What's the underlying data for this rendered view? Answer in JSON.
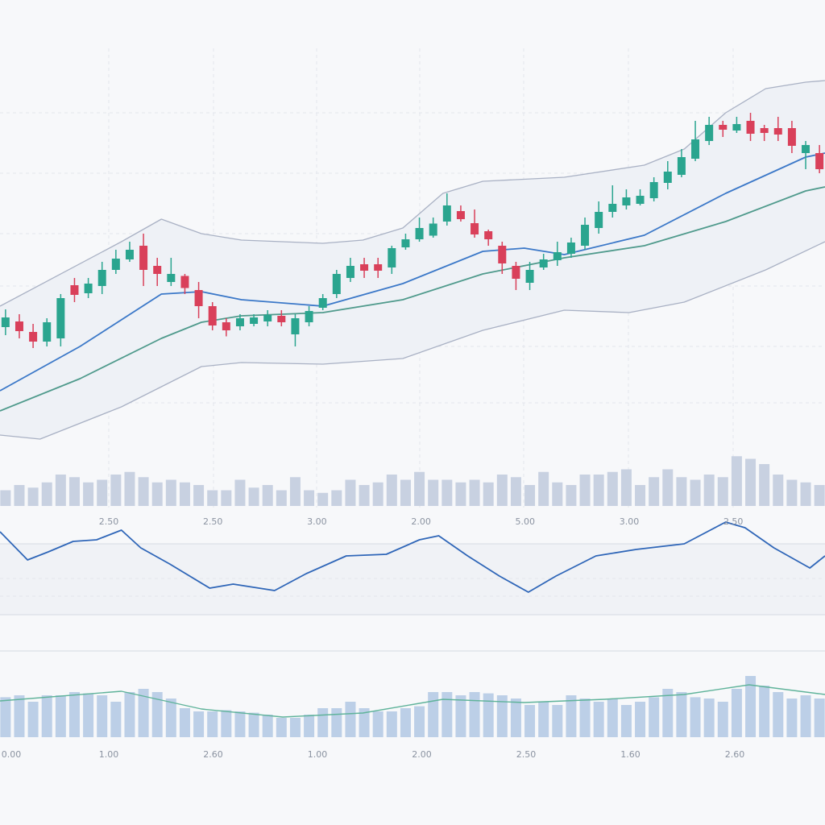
{
  "chart_data": [
    {
      "type": "candlestick",
      "categories": [
        null,
        null,
        null,
        null,
        null,
        null,
        null,
        null,
        null,
        null,
        null,
        null,
        null,
        null,
        null,
        null,
        null,
        null,
        null,
        null,
        null,
        null,
        null,
        null,
        null,
        null,
        null,
        null,
        null,
        null,
        null,
        null,
        null,
        null,
        null,
        null,
        null,
        null,
        null,
        null,
        null,
        null,
        null,
        null,
        null,
        null,
        null,
        null,
        null,
        null,
        null,
        null,
        null,
        null,
        null,
        null,
        null,
        null,
        null,
        null
      ],
      "open": [
        30.8,
        32.2,
        29.6,
        27.2,
        28,
        41.2,
        39.2,
        41,
        45,
        47.6,
        51,
        46,
        42,
        43.5,
        40,
        36,
        32,
        31,
        31.6,
        32.2,
        33.6,
        29,
        32,
        35.6,
        39,
        43,
        46.4,
        46.4,
        45.6,
        50.6,
        52.6,
        53.5,
        57,
        59.6,
        56.6,
        54.6,
        51,
        46,
        41.8,
        45.6,
        47.4,
        49,
        51,
        55.4,
        59.4,
        61,
        61.4,
        62.8,
        66.6,
        68.6,
        72.6,
        77,
        81,
        79.6,
        82,
        80.2,
        80.2,
        80.2,
        74,
        74
      ],
      "high": [
        35.2,
        34,
        31.6,
        33,
        39,
        43,
        43,
        47,
        50,
        52,
        54,
        48,
        48,
        44,
        42,
        37,
        33,
        34,
        34,
        35,
        35,
        34,
        36,
        39,
        45,
        48,
        48,
        48,
        51,
        54,
        58,
        58,
        64,
        61,
        60,
        55,
        52,
        47,
        47,
        49,
        52,
        53,
        58,
        62,
        66,
        65,
        65,
        68,
        72,
        75,
        82,
        83,
        82,
        83,
        84,
        81,
        83,
        82,
        77,
        76
      ],
      "low": [
        28.8,
        28,
        25.6,
        26,
        26,
        37,
        38,
        39,
        44,
        47,
        41,
        41,
        41,
        39,
        33,
        30,
        28.5,
        30,
        31,
        31,
        31,
        26,
        31,
        35,
        38,
        42,
        43,
        43,
        44,
        50,
        52,
        53,
        56,
        57,
        53,
        51,
        44,
        40,
        40,
        45,
        46,
        48,
        50,
        54,
        58,
        60,
        61,
        62,
        65,
        68,
        72,
        76,
        78,
        79,
        77,
        77,
        77,
        74,
        70,
        69
      ],
      "close": [
        33.2,
        29.8,
        27.2,
        32,
        38,
        38.8,
        41.6,
        45,
        47.8,
        50,
        45,
        44,
        44,
        40.5,
        36,
        31.2,
        30,
        33,
        33.2,
        33.8,
        32,
        33,
        34.8,
        38,
        44,
        46,
        44.8,
        44.8,
        50.4,
        52.6,
        55.4,
        56.5,
        61,
        57.6,
        53.8,
        52.6,
        46.6,
        42.8,
        45,
        47.6,
        49.4,
        51.8,
        56.2,
        59.4,
        61.4,
        63,
        63.4,
        66.8,
        69.4,
        73,
        77.4,
        81,
        79.8,
        81.2,
        78.8,
        79,
        78.6,
        75.8,
        76,
        70
      ],
      "up_color": "#2aa58f",
      "down_color": "#d9405a",
      "bands": [
        {
          "color": "#a9b1c4",
          "x": [
            -0.4,
            8.4,
            11.3,
            14.2,
            17.1,
            23,
            25.9,
            28.8,
            31.7,
            34.6,
            40.5,
            46.3,
            49.2,
            52.2,
            55.1,
            58,
            59.4
          ],
          "values": [
            36,
            52,
            57.6,
            54,
            52.4,
            51.6,
            52.4,
            55.4,
            64,
            67,
            68,
            71,
            75,
            84,
            90,
            91.6,
            92
          ]
        },
        {
          "color": "#a9b1c4",
          "x": [
            -0.4,
            2.5,
            8.4,
            14.2,
            17.1,
            23,
            28.8,
            34.6,
            40.5,
            45.2,
            49.2,
            55.1,
            59.4
          ],
          "values": [
            4,
            3,
            11,
            21,
            22,
            21.6,
            23,
            30,
            35,
            34.4,
            37,
            45,
            52
          ]
        }
      ],
      "band_fill": "#eef1f6",
      "lines": [
        {
          "color": "#3b78c8",
          "x": [
            -0.4,
            5.4,
            11.3,
            14.2,
            17.1,
            23,
            28.8,
            34.6,
            37.6,
            40.5,
            46.3,
            52.2,
            58,
            59.4
          ],
          "values": [
            15,
            26,
            39,
            39.6,
            37.6,
            36,
            41.6,
            49.6,
            50.4,
            48.8,
            53.6,
            64,
            73,
            74
          ]
        },
        {
          "color": "#4f9a8c",
          "x": [
            -0.4,
            5.4,
            11.3,
            14.2,
            17.1,
            23,
            28.8,
            34.6,
            40.5,
            46.3,
            52.2,
            58,
            59.4
          ],
          "values": [
            10,
            18,
            28,
            32,
            33.6,
            34.4,
            37.6,
            44,
            48,
            51,
            57,
            64.6,
            65.6
          ]
        }
      ],
      "xlim": [
        -0.4,
        59.4
      ],
      "ylim": [
        0,
        100
      ]
    },
    {
      "type": "bar",
      "values": [
        30,
        40,
        35,
        45,
        60,
        55,
        45,
        50,
        60,
        65,
        55,
        45,
        50,
        45,
        40,
        30,
        30,
        50,
        35,
        40,
        30,
        55,
        30,
        25,
        30,
        50,
        40,
        45,
        60,
        50,
        65,
        50,
        50,
        45,
        50,
        45,
        60,
        55,
        40,
        65,
        45,
        40,
        60,
        60,
        65,
        70,
        40,
        55,
        70,
        55,
        50,
        60,
        55,
        95,
        90,
        80,
        60,
        50,
        45,
        40
      ],
      "color": "#c8d1e1",
      "xlim": [
        -0.4,
        59.4
      ],
      "ylim": [
        0,
        100
      ]
    },
    {
      "type": "line",
      "x": [
        -0.4,
        1.6,
        3.1,
        4.9,
        6.6,
        8.4,
        9.8,
        11.9,
        14.8,
        16.5,
        19.5,
        21.8,
        24.7,
        27.6,
        30,
        31.4,
        33.5,
        35.8,
        37.9,
        39.9,
        42.8,
        45.7,
        49.2,
        52.2,
        53.6,
        55.7,
        58.3,
        59.4
      ],
      "values": [
        87.5,
        58.3,
        66.7,
        77.5,
        79.2,
        89.2,
        70.8,
        54.2,
        29.2,
        33.3,
        26.7,
        44.2,
        62.5,
        64.2,
        79.2,
        83.3,
        62.5,
        41.7,
        25,
        41.7,
        62.5,
        69.2,
        75,
        97.5,
        91.7,
        70.8,
        50,
        62.5
      ],
      "color": "#2f66b8",
      "xlim": [
        -0.4,
        59.4
      ],
      "ylim": [
        0,
        100
      ],
      "x_labels": [
        "2.50",
        "2.50",
        "3.00",
        "2.00",
        "5.00",
        "3.00",
        "2.50"
      ]
    },
    {
      "type": "bar",
      "values": [
        62,
        65,
        55,
        65,
        65,
        70,
        68,
        65,
        55,
        70,
        75,
        70,
        60,
        45,
        40,
        40,
        42,
        40,
        38,
        35,
        30,
        30,
        35,
        45,
        45,
        55,
        45,
        40,
        40,
        45,
        48,
        70,
        70,
        65,
        70,
        68,
        65,
        60,
        50,
        55,
        50,
        65,
        60,
        55,
        60,
        50,
        55,
        62,
        75,
        70,
        62,
        60,
        55,
        75,
        95,
        80,
        70,
        60,
        65,
        60
      ],
      "color": "#bccfe7",
      "line": {
        "color": "#5fb39a",
        "x": [
          -0.4,
          8.4,
          14.2,
          20.1,
          25.9,
          31.7,
          37.6,
          43.4,
          49.2,
          53.9,
          59.4
        ],
        "values": [
          56.25,
          71.25,
          43.75,
          31.25,
          37.5,
          58.75,
          53.75,
          58.75,
          66.25,
          81.25,
          66.25
        ]
      },
      "xlim": [
        -0.4,
        59.4
      ],
      "ylim": [
        0,
        100
      ],
      "x_labels": [
        "0.00",
        "1.00",
        "2.60",
        "1.00",
        "2.00",
        "2.50",
        "1.60",
        "2.60"
      ]
    }
  ]
}
